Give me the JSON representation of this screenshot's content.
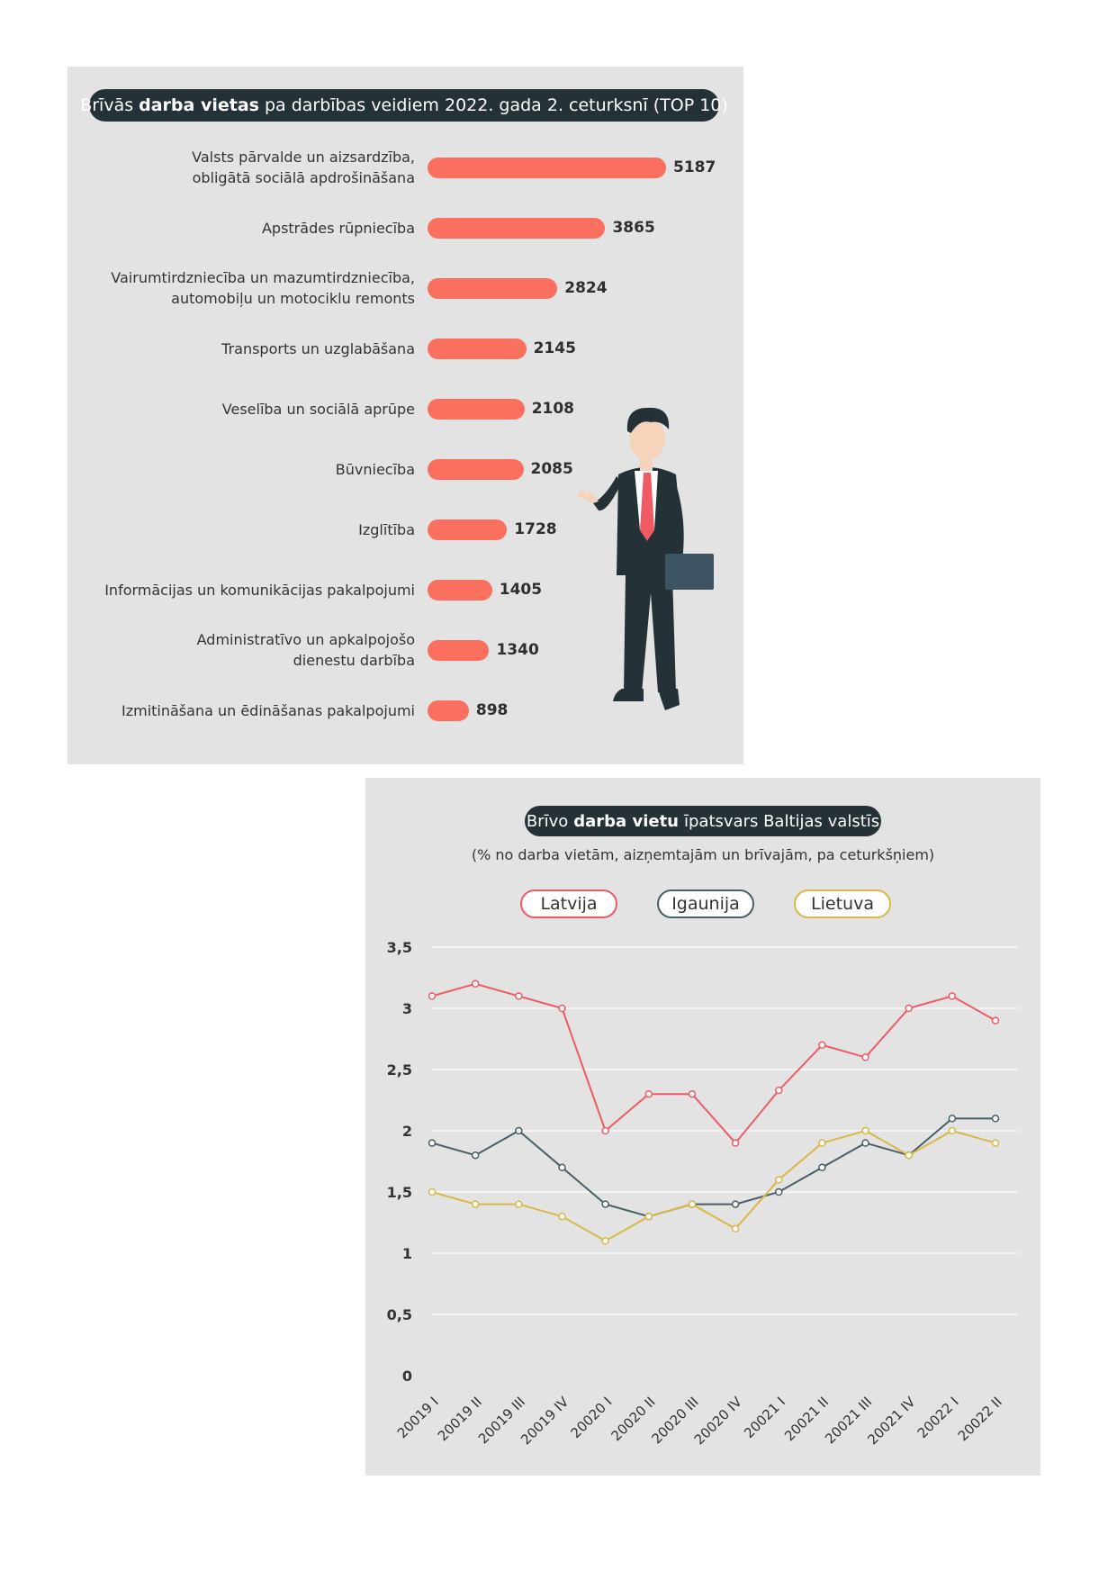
{
  "chart_data": [
    {
      "type": "bar",
      "orientation": "horizontal",
      "title": {
        "pre": "Brīvās",
        "bold": "darba vietas",
        "post": "pa darbības veidiem 2022. gada 2. ceturksnī (TOP 10)"
      },
      "categories": [
        [
          "Valsts pārvalde un aizsardzība,",
          "obligātā sociālā apdrošināšana"
        ],
        [
          "Apstrādes rūpniecība"
        ],
        [
          "Vairumtirdzniecība un mazumtirdzniecība,",
          "automobiļu un motociklu remonts"
        ],
        [
          "Transports un uzglabāšana"
        ],
        [
          "Veselība un sociālā aprūpe"
        ],
        [
          "Būvniecība"
        ],
        [
          "Izglītība"
        ],
        [
          "Informācijas un komunikācijas pakalpojumi"
        ],
        [
          "Administratīvo un apkalpojošo",
          "dienestu darbība"
        ],
        [
          "Izmitināšana un ēdināšanas pakalpojumi"
        ]
      ],
      "values": [
        5187,
        3865,
        2824,
        2145,
        2108,
        2085,
        1728,
        1405,
        1340,
        898
      ],
      "value_labels": [
        "5187",
        "3865",
        "2824",
        "2145",
        "2108",
        "2085",
        "1728",
        "1405",
        "1340",
        "898"
      ],
      "bar_color": "#fa6f5e"
    },
    {
      "type": "line",
      "title": {
        "pre": "Brīvo",
        "bold": "darba vietu",
        "post": "īpatsvars Baltijas valstīs"
      },
      "subtitle": "(% no darba vietām, aizņemtajām un brīvajām, pa ceturkšņiem)",
      "x": [
        "20019 I",
        "20019 II",
        "20019 III",
        "20019 IV",
        "20020 I",
        "20020 II",
        "20020 III",
        "20020 IV",
        "20021 I",
        "20021 II",
        "20021 III",
        "20021 IV",
        "20022 I",
        "20022 II"
      ],
      "ylim": [
        0,
        3.5
      ],
      "yticks": [
        {
          "v": 0,
          "label": "0"
        },
        {
          "v": 0.5,
          "label": "0,5"
        },
        {
          "v": 1,
          "label": "1"
        },
        {
          "v": 1.5,
          "label": "1,5"
        },
        {
          "v": 2,
          "label": "2"
        },
        {
          "v": 2.5,
          "label": "2,5"
        },
        {
          "v": 3,
          "label": "3"
        },
        {
          "v": 3.5,
          "label": "3,5"
        }
      ],
      "grid": true,
      "legend_position": "top",
      "series": [
        {
          "name": "Latvija",
          "color": "#ef5a64",
          "values": [
            3.1,
            3.2,
            3.1,
            3.0,
            2.0,
            2.3,
            2.3,
            1.9,
            2.33,
            2.7,
            2.6,
            3.0,
            3.1,
            2.9
          ]
        },
        {
          "name": "Igaunija",
          "color": "#4a5e66",
          "values": [
            1.9,
            1.8,
            2.0,
            1.7,
            1.4,
            1.3,
            1.4,
            1.4,
            1.5,
            1.7,
            1.9,
            1.8,
            2.1,
            2.1
          ]
        },
        {
          "name": "Lietuva",
          "color": "#d9b848",
          "values": [
            1.5,
            1.4,
            1.4,
            1.3,
            1.1,
            1.3,
            1.4,
            1.2,
            1.6,
            1.9,
            2.0,
            1.8,
            2.0,
            1.9
          ]
        }
      ]
    }
  ]
}
